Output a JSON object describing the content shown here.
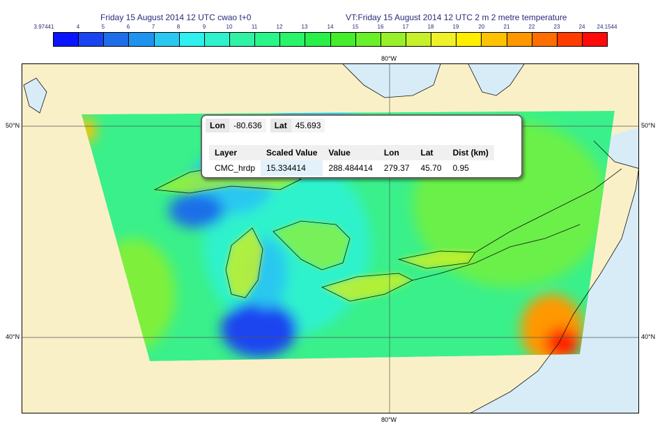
{
  "header": {
    "left_title": "Friday 15 August 2014 12 UTC cwao t+0",
    "right_title": "VT:Friday 15 August 2014 12 UTC 2 m  2 metre temperature"
  },
  "colorbar": {
    "labels": [
      "3.97441",
      "4",
      "5",
      "6",
      "7",
      "8",
      "9",
      "10",
      "11",
      "12",
      "13",
      "14",
      "15",
      "16",
      "17",
      "18",
      "19",
      "20",
      "21",
      "22",
      "23",
      "24",
      "24.1544"
    ],
    "colors": [
      "#0a14ff",
      "#1a44f0",
      "#1f6ee8",
      "#1f94ee",
      "#2ac8f0",
      "#2ff0ee",
      "#2ff2cc",
      "#2ff2a6",
      "#2af58a",
      "#2af56a",
      "#28f048",
      "#44ee2a",
      "#6af02a",
      "#98f02a",
      "#c6f02a",
      "#eef02a",
      "#ffee00",
      "#ffc200",
      "#ff9800",
      "#ff6e00",
      "#ff3c00",
      "#ff0a0a"
    ]
  },
  "map": {
    "lon_label_top": "80°W",
    "lon_label_bottom": "80°W",
    "lat_label_50_left": "50°N",
    "lat_label_50_right": "50°N",
    "lat_label_40_left": "40°N",
    "lat_label_40_right": "40°N",
    "land_color": "#faf0c8",
    "water_color": "#d8ecf8"
  },
  "popup": {
    "lon_label": "Lon",
    "lon_value": "-80.636",
    "lat_label": "Lat",
    "lat_value": "45.693",
    "columns": [
      "Layer",
      "Scaled Value",
      "Value",
      "Lon",
      "Lat",
      "Dist (km)"
    ],
    "row": {
      "layer": "CMC_hrdp",
      "scaled_value": "15.334414",
      "value": "288.484414",
      "lon": "279.37",
      "lat": "45.70",
      "dist": "0.95"
    }
  }
}
